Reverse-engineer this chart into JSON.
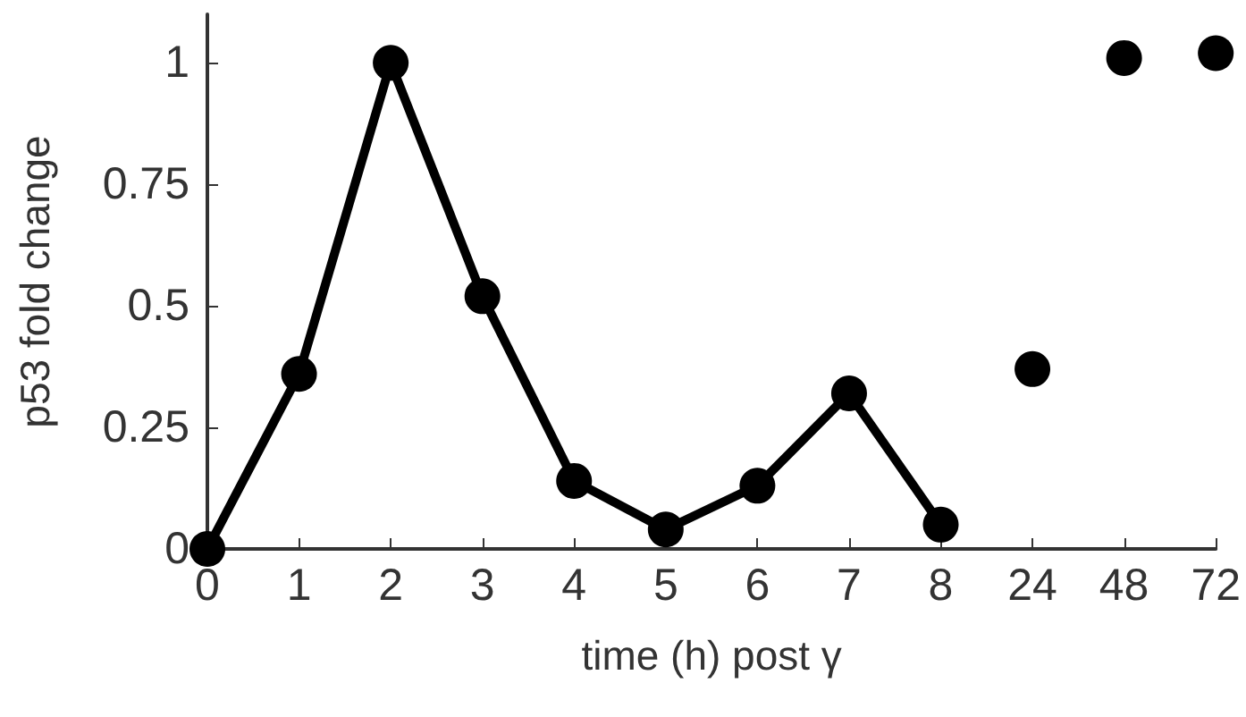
{
  "chart_data": {
    "type": "line",
    "xlabel": "time (h) post γ",
    "ylabel": "p53 fold change",
    "categories": [
      "0",
      "1",
      "2",
      "3",
      "4",
      "5",
      "6",
      "7",
      "8",
      "24",
      "48",
      "72"
    ],
    "series": [
      {
        "color": "#000000",
        "x": [
          "0",
          "1",
          "2",
          "3",
          "4",
          "5",
          "6",
          "7",
          "8"
        ],
        "values": [
          0,
          0.36,
          1,
          0.52,
          0.14,
          0.04,
          0.13,
          0.32,
          0.05
        ]
      },
      {
        "type": "scatter",
        "color": "#000000",
        "x": [
          "24",
          "48",
          "72"
        ],
        "values": [
          0.37,
          1.01,
          1.02
        ]
      }
    ],
    "ylim": [
      0,
      1.1
    ],
    "yticks": [
      0,
      0.25,
      0.5,
      0.75,
      1
    ],
    "grid": false,
    "marker": "circle",
    "line_style": "solid"
  }
}
